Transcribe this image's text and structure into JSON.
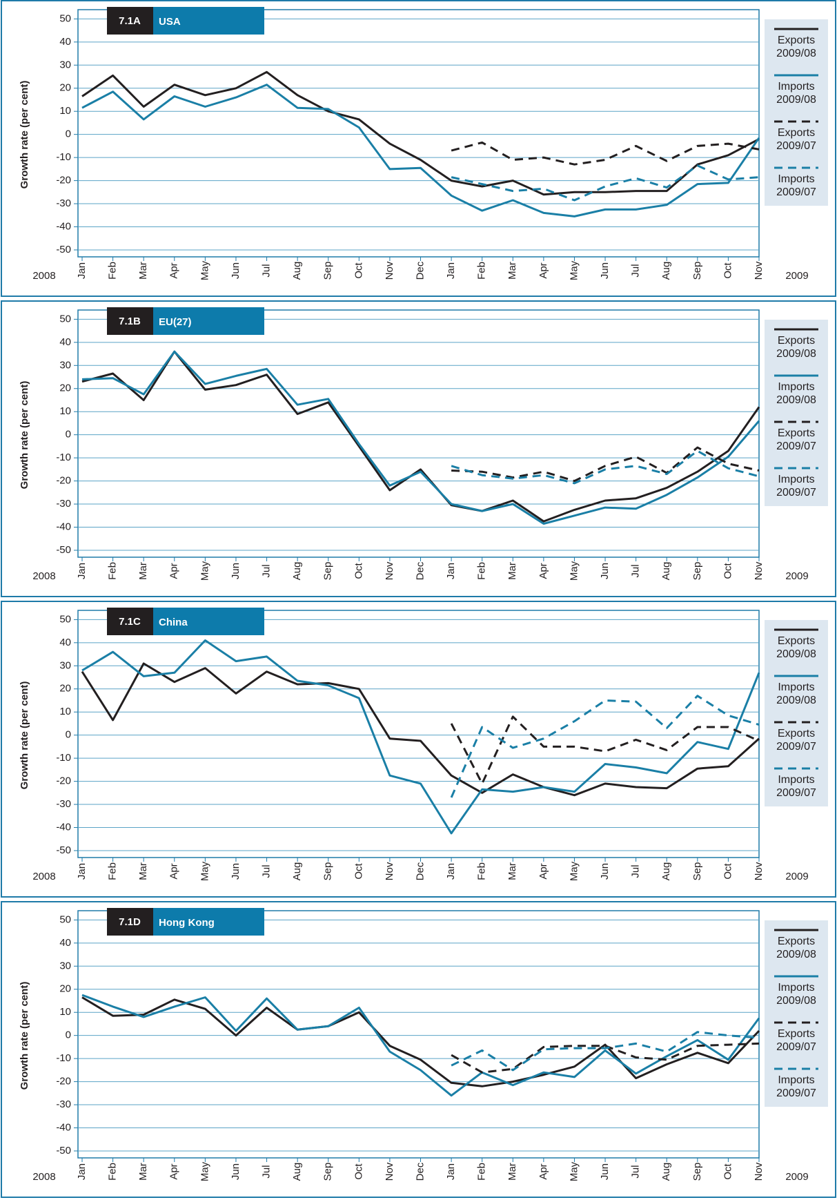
{
  "chart_data": [
    {
      "type": "line",
      "label": "7.1A",
      "title": "USA",
      "y_label": "Growth rate (per cent)",
      "year_start": "2008",
      "year_end": "2009",
      "categories": [
        "Jan",
        "Feb",
        "Mar",
        "Apr",
        "May",
        "Jun",
        "Jul",
        "Aug",
        "Sep",
        "Oct",
        "Nov",
        "Dec",
        "Jan",
        "Feb",
        "Mar",
        "Apr",
        "May",
        "Jun",
        "Jul",
        "Aug",
        "Sep",
        "Oct",
        "Nov"
      ],
      "ylim": [
        -53,
        54
      ],
      "yticks": [
        50,
        40,
        30,
        20,
        10,
        0,
        -10,
        -20,
        -30,
        -40,
        -50
      ],
      "grid": true,
      "series": [
        {
          "name": "Exports 2009/08",
          "color": "#231f20",
          "dashed": false,
          "values": [
            16.5,
            25.5,
            12,
            21.5,
            17,
            20,
            27,
            17,
            10,
            6.5,
            -4,
            -11,
            -20,
            -22.5,
            -20,
            -26,
            -25,
            -25,
            -24.5,
            -24.5,
            -13,
            -9,
            -2
          ]
        },
        {
          "name": "Imports 2009/08",
          "color": "#1a7fa6",
          "dashed": false,
          "values": [
            11.5,
            18.5,
            6.5,
            16.5,
            12,
            16,
            21.5,
            11.5,
            11,
            3,
            -15,
            -14.5,
            -26.5,
            -33,
            -28.5,
            -34,
            -35.5,
            -32.5,
            -32.5,
            -30.5,
            -21.5,
            -21,
            -1.5
          ]
        },
        {
          "name": "Exports 2009/07",
          "color": "#231f20",
          "dashed": true,
          "values": [
            null,
            null,
            null,
            null,
            null,
            null,
            null,
            null,
            null,
            null,
            null,
            null,
            -7,
            -3.5,
            -11,
            -10,
            -13,
            -11,
            -5,
            -11.5,
            -5,
            -4,
            -6.5
          ]
        },
        {
          "name": "Imports 2009/07",
          "color": "#1a7fa6",
          "dashed": true,
          "values": [
            null,
            null,
            null,
            null,
            null,
            null,
            null,
            null,
            null,
            null,
            null,
            null,
            -18.5,
            -21.5,
            -24.5,
            -23.5,
            -28.5,
            -22.5,
            -19,
            -23,
            -13.5,
            -19.5,
            -18.5
          ]
        }
      ]
    },
    {
      "type": "line",
      "label": "7.1B",
      "title": "EU(27)",
      "y_label": "Growth rate (per cent)",
      "year_start": "2008",
      "year_end": "2009",
      "categories": [
        "Jan",
        "Feb",
        "Mar",
        "Apr",
        "May",
        "Jun",
        "Jul",
        "Aug",
        "Sep",
        "Oct",
        "Nov",
        "Dec",
        "Jan",
        "Feb",
        "Mar",
        "Apr",
        "May",
        "Jun",
        "Jul",
        "Aug",
        "Sep",
        "Oct",
        "Nov"
      ],
      "ylim": [
        -53,
        54
      ],
      "yticks": [
        50,
        40,
        30,
        20,
        10,
        0,
        -10,
        -20,
        -30,
        -40,
        -50
      ],
      "grid": true,
      "series": [
        {
          "name": "Exports 2009/08",
          "color": "#231f20",
          "dashed": false,
          "values": [
            23,
            26.5,
            15,
            36,
            19.5,
            21.5,
            26,
            9,
            14,
            -5,
            -24,
            -15,
            -30.5,
            -33,
            -28.5,
            -37.5,
            -32.5,
            -28.5,
            -27.5,
            -23,
            -16,
            -7,
            12
          ]
        },
        {
          "name": "Imports 2009/08",
          "color": "#1a7fa6",
          "dashed": false,
          "values": [
            24,
            24.5,
            17.5,
            36,
            22,
            25.5,
            28.5,
            13,
            15.5,
            -4,
            -22,
            -16,
            -30,
            -33,
            -30,
            -38.5,
            -35,
            -31.5,
            -32,
            -26,
            -18.5,
            -9.5,
            6
          ]
        },
        {
          "name": "Exports 2009/07",
          "color": "#231f20",
          "dashed": true,
          "values": [
            null,
            null,
            null,
            null,
            null,
            null,
            null,
            null,
            null,
            null,
            null,
            null,
            -15.5,
            -16,
            -18.5,
            -16,
            -20,
            -13.5,
            -9.5,
            -16.5,
            -5.5,
            -12.5,
            -15.5
          ]
        },
        {
          "name": "Imports 2009/07",
          "color": "#1a7fa6",
          "dashed": true,
          "values": [
            null,
            null,
            null,
            null,
            null,
            null,
            null,
            null,
            null,
            null,
            null,
            null,
            -13.5,
            -17.5,
            -19,
            -17.5,
            -21,
            -15,
            -13.5,
            -17,
            -7,
            -14.5,
            -18
          ]
        }
      ]
    },
    {
      "type": "line",
      "label": "7.1C",
      "title": "China",
      "y_label": "Growth rate (per cent)",
      "year_start": "2008",
      "year_end": "2009",
      "categories": [
        "Jan",
        "Feb",
        "Mar",
        "Apr",
        "May",
        "Jun",
        "Jul",
        "Aug",
        "Sep",
        "Oct",
        "Nov",
        "Dec",
        "Jan",
        "Feb",
        "Mar",
        "Apr",
        "May",
        "Jun",
        "Jul",
        "Aug",
        "Sep",
        "Oct",
        "Nov"
      ],
      "ylim": [
        -53,
        54
      ],
      "yticks": [
        50,
        40,
        30,
        20,
        10,
        0,
        -10,
        -20,
        -30,
        -40,
        -50
      ],
      "grid": true,
      "series": [
        {
          "name": "Exports 2009/08",
          "color": "#231f20",
          "dashed": false,
          "values": [
            27.5,
            6.5,
            31,
            23,
            29,
            18,
            27.5,
            22,
            22.5,
            20,
            -1.5,
            -2.5,
            -17.5,
            -25,
            -17,
            -22.5,
            -26,
            -21,
            -22.5,
            -23,
            -14.5,
            -13.5,
            -1.5
          ]
        },
        {
          "name": "Imports 2009/08",
          "color": "#1a7fa6",
          "dashed": false,
          "values": [
            28,
            36,
            25.5,
            27,
            41,
            32,
            34,
            23.5,
            21.5,
            16,
            -17.5,
            -21,
            -42.5,
            -23.5,
            -24.5,
            -22.5,
            -24.5,
            -12.5,
            -14,
            -16.5,
            -3,
            -6,
            27
          ]
        },
        {
          "name": "Exports 2009/07",
          "color": "#231f20",
          "dashed": true,
          "values": [
            null,
            null,
            null,
            null,
            null,
            null,
            null,
            null,
            null,
            null,
            null,
            null,
            5,
            -21,
            8,
            -5,
            -5,
            -7,
            -2,
            -6.5,
            3.5,
            3.5,
            -2.5
          ]
        },
        {
          "name": "Imports 2009/07",
          "color": "#1a7fa6",
          "dashed": true,
          "values": [
            null,
            null,
            null,
            null,
            null,
            null,
            null,
            null,
            null,
            null,
            null,
            null,
            -27,
            3.5,
            -5.5,
            -1.5,
            6,
            15,
            14.5,
            3,
            17,
            8.5,
            4.5
          ]
        }
      ]
    },
    {
      "type": "line",
      "label": "7.1D",
      "title": "Hong Kong",
      "y_label": "Growth rate (per cent)",
      "year_start": "2008",
      "year_end": "2009",
      "categories": [
        "Jan",
        "Feb",
        "Mar",
        "Apr",
        "May",
        "Jun",
        "Jul",
        "Aug",
        "Sep",
        "Oct",
        "Nov",
        "Dec",
        "Jan",
        "Feb",
        "Mar",
        "Apr",
        "May",
        "Jun",
        "Jul",
        "Aug",
        "Sep",
        "Oct",
        "Nov"
      ],
      "ylim": [
        -53,
        54
      ],
      "yticks": [
        50,
        40,
        30,
        20,
        10,
        0,
        -10,
        -20,
        -30,
        -40,
        -50
      ],
      "grid": true,
      "series": [
        {
          "name": "Exports 2009/08",
          "color": "#231f20",
          "dashed": false,
          "values": [
            16.5,
            8.5,
            9,
            15.5,
            11.5,
            0,
            12,
            2.5,
            4,
            10,
            -4.5,
            -10.5,
            -20.5,
            -22,
            -20,
            -17,
            -13.5,
            -4,
            -18.5,
            -12.5,
            -7.5,
            -12,
            2
          ]
        },
        {
          "name": "Imports 2009/08",
          "color": "#1a7fa6",
          "dashed": false,
          "values": [
            17.5,
            12.5,
            8,
            12.5,
            16.5,
            2,
            16,
            2.5,
            4,
            12,
            -7,
            -15,
            -26,
            -16,
            -21.5,
            -16,
            -18,
            -6.5,
            -16.5,
            -9,
            -2,
            -10.5,
            7.5
          ]
        },
        {
          "name": "Exports 2009/07",
          "color": "#231f20",
          "dashed": true,
          "values": [
            null,
            null,
            null,
            null,
            null,
            null,
            null,
            null,
            null,
            null,
            null,
            null,
            -8.5,
            -16,
            -14.5,
            -5,
            -4.5,
            -4.5,
            -9.5,
            -10.5,
            -4.5,
            -4,
            -3.5
          ]
        },
        {
          "name": "Imports 2009/07",
          "color": "#1a7fa6",
          "dashed": true,
          "values": [
            null,
            null,
            null,
            null,
            null,
            null,
            null,
            null,
            null,
            null,
            null,
            null,
            -13,
            -6.5,
            -15,
            -6,
            -5.5,
            -5.5,
            -3.5,
            -7,
            1.5,
            0,
            -1
          ]
        }
      ]
    }
  ]
}
